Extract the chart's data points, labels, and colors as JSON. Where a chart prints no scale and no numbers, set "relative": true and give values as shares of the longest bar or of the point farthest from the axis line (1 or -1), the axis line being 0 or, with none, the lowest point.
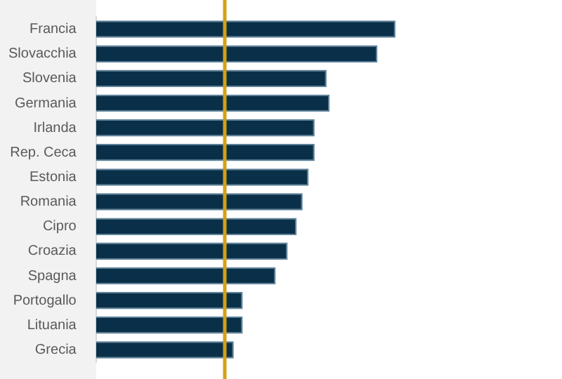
{
  "chart_data": {
    "type": "bar",
    "orientation": "horizontal",
    "relative": true,
    "categories": [
      "Francia",
      "Slovacchia",
      "Slovenia",
      "Germania",
      "Irlanda",
      "Rep. Ceca",
      "Estonia",
      "Romania",
      "Cipro",
      "Croazia",
      "Spagna",
      "Portogallo",
      "Lituania",
      "Grecia"
    ],
    "series": [
      {
        "color": "#0a3049",
        "values": [
          1,
          0.94,
          0.77,
          0.78,
          0.73,
          0.73,
          0.71,
          0.69,
          0.67,
          0.64,
          0.6,
          0.49,
          0.49,
          0.46
        ]
      }
    ],
    "ref_lines": [
      {
        "axis": "x",
        "value": 0.43,
        "color": "#d4a017"
      }
    ]
  }
}
